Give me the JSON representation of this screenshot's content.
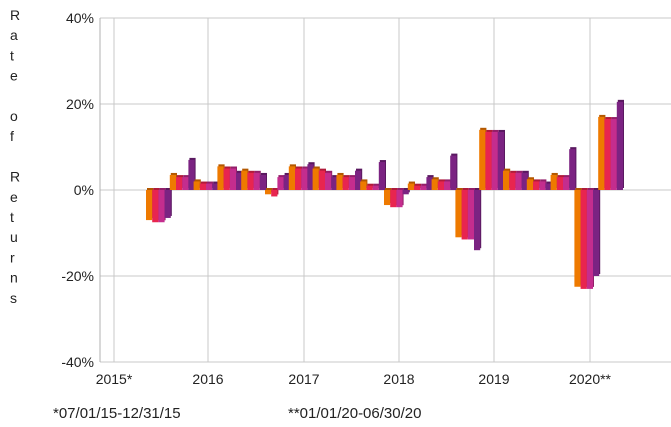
{
  "chart_data": {
    "type": "bar",
    "title": "",
    "xlabel": "",
    "ylabel": "Rate of Returns",
    "ylim": [
      -40,
      40
    ],
    "grid": true,
    "legend": "none",
    "x_tick_labels": [
      "2015*",
      "2016",
      "2017",
      "2018",
      "2019",
      "2020**"
    ],
    "y_tick_labels": [
      "40%",
      "20%",
      "0%",
      "-20%",
      "-40%"
    ],
    "y_ticks": [
      40,
      20,
      0,
      -20,
      -40
    ],
    "colors": [
      "#ee7a00",
      "#e8254f",
      "#c42d8e",
      "#7b2382"
    ],
    "groups": [
      {
        "year": "2015*",
        "values": [
          -7,
          -7.5,
          -7.5,
          -6.5
        ]
      },
      {
        "year": "2015*",
        "values": [
          3.5,
          3,
          3,
          7
        ]
      },
      {
        "year": "2016",
        "values": [
          2,
          1.5,
          1.5,
          1.5
        ]
      },
      {
        "year": "2016",
        "values": [
          5.5,
          5,
          5,
          4
        ]
      },
      {
        "year": "2016",
        "values": [
          4.5,
          4,
          4,
          3.5
        ]
      },
      {
        "year": "2016",
        "values": [
          -1,
          -1.5,
          3,
          3.5
        ]
      },
      {
        "year": "2017",
        "values": [
          5.5,
          5,
          5,
          6
        ]
      },
      {
        "year": "2017",
        "values": [
          5,
          4.5,
          4,
          3
        ]
      },
      {
        "year": "2017",
        "values": [
          3.5,
          3,
          3,
          4.5
        ]
      },
      {
        "year": "2017",
        "values": [
          2,
          1,
          1,
          6.5
        ]
      },
      {
        "year": "2018",
        "values": [
          -3.5,
          -4,
          -4,
          -1
        ]
      },
      {
        "year": "2018",
        "values": [
          1.5,
          1,
          1,
          3
        ]
      },
      {
        "year": "2018",
        "values": [
          2.5,
          2,
          2,
          8
        ]
      },
      {
        "year": "2018",
        "values": [
          -11,
          -11.5,
          -11.5,
          -14
        ]
      },
      {
        "year": "2019",
        "values": [
          14,
          13.5,
          13.5,
          13.5
        ]
      },
      {
        "year": "2019",
        "values": [
          4.5,
          4,
          4,
          4
        ]
      },
      {
        "year": "2019",
        "values": [
          2.5,
          2,
          2,
          1.5
        ]
      },
      {
        "year": "2019",
        "values": [
          3.5,
          3,
          3,
          9.5
        ]
      },
      {
        "year": "2020**",
        "values": [
          -22.5,
          -23,
          -23,
          -20
        ]
      },
      {
        "year": "2020**",
        "values": [
          17,
          16.5,
          16.5,
          20.5
        ]
      }
    ]
  },
  "ylabel_letters": [
    "R",
    "a",
    "t",
    "e",
    "",
    "o",
    "f",
    "",
    "R",
    "e",
    "t",
    "u",
    "r",
    "n",
    "s"
  ],
  "footnotes": {
    "note_2015": "*07/01/15-12/31/15",
    "note_2020": "**01/01/20-06/30/20"
  }
}
